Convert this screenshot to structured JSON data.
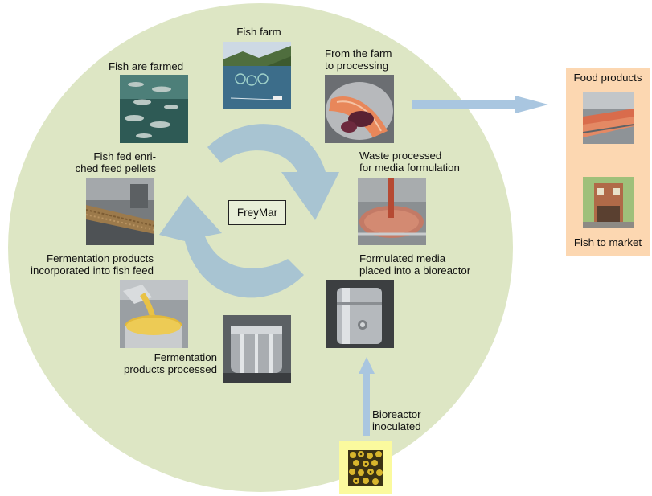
{
  "colors": {
    "ellipse": "#dde6c4",
    "cycle_arrow": "#a8c4d2",
    "flow_arrow": "#a9c6e0",
    "panel": "#fcd7b1",
    "inoculum_box": "#fbfa9e"
  },
  "center_label": "FreyMar",
  "stages": [
    {
      "label": [
        "Fish farm"
      ],
      "icon": "fish-farm-aerial-photo"
    },
    {
      "label": [
        "From the farm",
        "to processing"
      ],
      "icon": "salmon-fillet-photo"
    },
    {
      "label": [
        "Waste processed",
        "for media formulation"
      ],
      "icon": "mixing-vat-photo"
    },
    {
      "label": [
        "Formulated media",
        "placed into a bioreactor"
      ],
      "icon": "bioreactor-tank-photo"
    },
    {
      "label": [
        "Fermentation",
        "products processed"
      ],
      "icon": "processing-vessel-photo"
    },
    {
      "label": [
        "Fermentation products",
        "incorporated into fish feed"
      ],
      "icon": "pouring-liquid-photo"
    },
    {
      "label": [
        "Fish fed enri-",
        "ched feed pellets"
      ],
      "icon": "feed-pellets-conveyor-photo"
    },
    {
      "label": [
        "Fish are farmed"
      ],
      "icon": "underwater-fish-photo"
    }
  ],
  "output_panel": {
    "title": "Food products",
    "footer": "Fish to market",
    "icons": [
      "factory-line-photo",
      "market-shop-photo"
    ]
  },
  "inoculation": {
    "label": [
      "Bioreactor",
      "inoculated"
    ],
    "icon": "microbe-culture-photo"
  }
}
